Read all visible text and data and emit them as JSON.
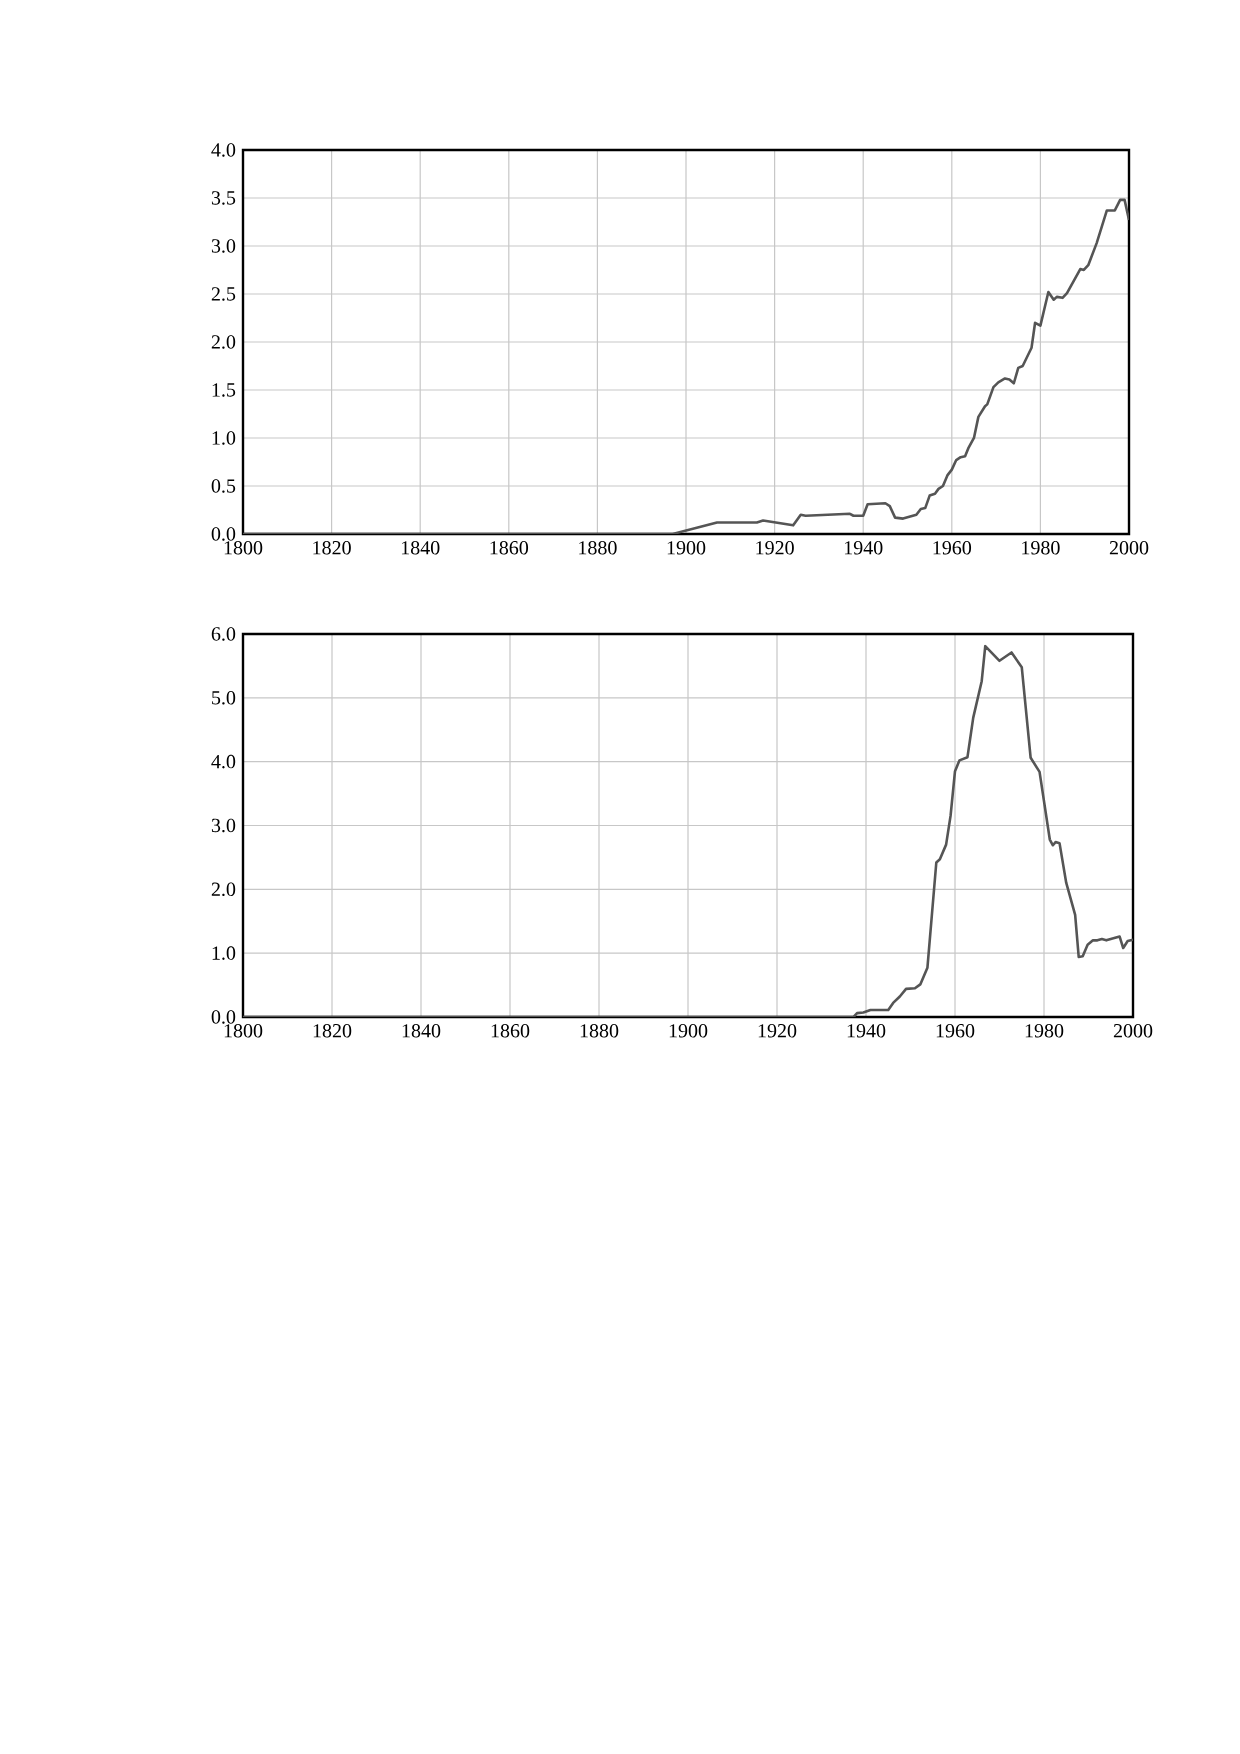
{
  "chart_data": [
    {
      "type": "line",
      "xlim": [
        1800,
        2000
      ],
      "ylim": [
        0,
        4
      ],
      "xticks": [
        1800,
        1820,
        1840,
        1860,
        1880,
        1900,
        1920,
        1940,
        1960,
        1980,
        2000
      ],
      "yticks": [
        {
          "value": 0,
          "label": "0.0"
        },
        {
          "value": 0.5,
          "label": "0.5"
        },
        {
          "value": 1,
          "label": "1.0"
        },
        {
          "value": 1.5,
          "label": "1.5"
        },
        {
          "value": 2,
          "label": "2.0"
        },
        {
          "value": 2.5,
          "label": "2.5"
        },
        {
          "value": 3,
          "label": "3.0"
        },
        {
          "value": 3.5,
          "label": "3.5"
        },
        {
          "value": 4,
          "label": "4.0"
        }
      ],
      "grid": true,
      "series": [
        {
          "color": "#555555",
          "x": [
            1800,
            1897,
            1907,
            1916,
            1917.4,
            1924.2,
            1925.9,
            1927,
            1937,
            1937.8,
            1940,
            1941,
            1945,
            1946,
            1947.2,
            1949,
            1952,
            1953,
            1954,
            1955,
            1956.2,
            1957,
            1958,
            1959,
            1960,
            1961,
            1962,
            1963,
            1963.8,
            1965,
            1966,
            1967.5,
            1968,
            1969.4,
            1970.5,
            1972,
            1973,
            1974,
            1975,
            1976,
            1978,
            1978.8,
            1980,
            1981.8,
            1983,
            1983.7,
            1985,
            1986,
            1989,
            1989.8,
            1990.8,
            1992.7,
            1995,
            1996.8,
            1998,
            1999,
            2000
          ],
          "values": [
            0,
            0,
            0.12,
            0.12,
            0.14,
            0.09,
            0.2,
            0.19,
            0.21,
            0.19,
            0.19,
            0.31,
            0.32,
            0.29,
            0.17,
            0.16,
            0.2,
            0.26,
            0.27,
            0.4,
            0.42,
            0.47,
            0.5,
            0.61,
            0.67,
            0.77,
            0.8,
            0.81,
            0.9,
            1.0,
            1.22,
            1.33,
            1.35,
            1.53,
            1.58,
            1.62,
            1.61,
            1.57,
            1.73,
            1.75,
            1.94,
            2.2,
            2.17,
            2.52,
            2.44,
            2.47,
            2.46,
            2.51,
            2.76,
            2.75,
            2.8,
            3.03,
            3.37,
            3.37,
            3.48,
            3.48,
            3.27
          ]
        }
      ]
    },
    {
      "type": "line",
      "xlim": [
        1800,
        2000
      ],
      "ylim": [
        0,
        6
      ],
      "xticks": [
        1800,
        1820,
        1840,
        1860,
        1880,
        1900,
        1920,
        1940,
        1960,
        1980,
        2000
      ],
      "yticks": [
        {
          "value": 0,
          "label": "0.0"
        },
        {
          "value": 1,
          "label": "1.0"
        },
        {
          "value": 2,
          "label": "2.0"
        },
        {
          "value": 3,
          "label": "3.0"
        },
        {
          "value": 4,
          "label": "4.0"
        },
        {
          "value": 5,
          "label": "5.0"
        },
        {
          "value": 6,
          "label": "6.0"
        }
      ],
      "grid": true,
      "series": [
        {
          "color": "#555555",
          "x": [
            1800,
            1937.2,
            1938,
            1939.4,
            1941,
            1945,
            1946.1,
            1947.6,
            1949,
            1951,
            1952.2,
            1953.8,
            1955.8,
            1956.6,
            1958,
            1959,
            1960,
            1961,
            1962.8,
            1964.1,
            1966,
            1966.8,
            1970,
            1972.7,
            1975,
            1977,
            1979,
            1981.3,
            1982,
            1982.6,
            1983.5,
            1985,
            1987,
            1987.8,
            1988.7,
            1989.8,
            1991,
            1992,
            1993,
            1994,
            1997,
            1997.8,
            1998.8,
            2000
          ],
          "values": [
            0,
            0,
            0.06,
            0.07,
            0.11,
            0.11,
            0.22,
            0.32,
            0.44,
            0.45,
            0.51,
            0.77,
            2.42,
            2.47,
            2.7,
            3.15,
            3.85,
            4.02,
            4.07,
            4.69,
            5.26,
            5.81,
            5.58,
            5.71,
            5.48,
            4.06,
            3.84,
            2.78,
            2.69,
            2.74,
            2.72,
            2.1,
            1.6,
            0.94,
            0.95,
            1.13,
            1.2,
            1.2,
            1.22,
            1.2,
            1.26,
            1.08,
            1.19,
            1.21
          ]
        }
      ]
    }
  ]
}
